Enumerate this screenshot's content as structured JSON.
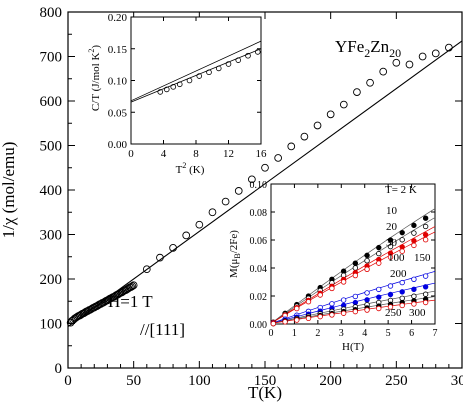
{
  "chart_data": [
    {
      "id": "main",
      "type": "scatter",
      "xlabel": "T(K)",
      "ylabel": "1/χ (mol/emu)",
      "xlim": [
        0,
        300
      ],
      "ylim": [
        0,
        800
      ],
      "xticks": [
        0,
        50,
        100,
        150,
        200,
        250,
        300
      ],
      "yticks": [
        0,
        100,
        200,
        300,
        400,
        500,
        600,
        700,
        800
      ],
      "annotations": {
        "compound": "YFe",
        "compound_sub1": "2",
        "compound_mid": "Zn",
        "compound_sub2": "20",
        "field": "H=1 T",
        "direction": "//[111]"
      },
      "series": [
        {
          "kind": "points",
          "marker": "open-circle",
          "x": [
            2,
            3,
            4,
            5,
            6,
            7,
            8,
            9,
            10,
            11,
            12,
            13,
            14,
            15,
            16,
            17,
            18,
            19,
            20,
            21,
            22,
            23,
            24,
            25,
            26,
            27,
            28,
            29,
            30,
            31,
            32,
            33,
            34,
            35,
            36,
            37,
            38,
            39,
            40,
            41,
            42,
            43,
            44,
            45,
            46,
            47,
            48,
            49,
            50,
            60,
            70,
            80,
            90,
            100,
            110,
            120,
            130,
            140,
            150,
            160,
            170,
            180,
            190,
            200,
            210,
            220,
            230,
            240,
            250,
            260,
            270,
            280,
            290
          ],
          "y": [
            102,
            106,
            108,
            111,
            113,
            115,
            117,
            118,
            120,
            122,
            123,
            125,
            127,
            128,
            130,
            131,
            133,
            135,
            136,
            138,
            139,
            141,
            143,
            144,
            146,
            147,
            149,
            151,
            152,
            154,
            156,
            157,
            159,
            160,
            162,
            164,
            165,
            167,
            169,
            170,
            172,
            174,
            175,
            177,
            179,
            181,
            182,
            184,
            186,
            222,
            248,
            270,
            298,
            322,
            350,
            374,
            398,
            424,
            450,
            472,
            498,
            520,
            545,
            570,
            592,
            620,
            641,
            666,
            686,
            682,
            700,
            707,
            720
          ]
        },
        {
          "kind": "line",
          "x": [
            0,
            300
          ],
          "y": [
            93,
            735
          ]
        }
      ]
    },
    {
      "id": "inset_heat_capacity",
      "type": "scatter",
      "xlabel": "T",
      "xlabel_sup": "2",
      "xlabel_unit": " (K)",
      "ylabel": "C/T (J/mol K",
      "ylabel_sup": "2",
      "ylabel_end": ")",
      "xlim": [
        0,
        16
      ],
      "ylim": [
        0,
        0.2
      ],
      "xticks": [
        0,
        4,
        8,
        12,
        16
      ],
      "yticks": [
        0,
        0.05,
        0.1,
        0.15,
        0.2
      ],
      "ytick_labels": [
        "0.00",
        "0.05",
        "0.10",
        "0.15",
        "0.20"
      ],
      "series": [
        {
          "kind": "points",
          "marker": "open-circle",
          "x": [
            3.6,
            4.4,
            5.2,
            6.0,
            7.2,
            8.4,
            9.6,
            10.8,
            12.0,
            13.2,
            14.4,
            15.6
          ],
          "y": [
            0.082,
            0.086,
            0.09,
            0.094,
            0.1,
            0.107,
            0.113,
            0.119,
            0.126,
            0.132,
            0.139,
            0.145
          ]
        },
        {
          "kind": "line",
          "x": [
            0,
            16
          ],
          "y": [
            0.066,
            0.15
          ]
        },
        {
          "kind": "line",
          "x": [
            0,
            16
          ],
          "y": [
            0.068,
            0.162
          ]
        }
      ]
    },
    {
      "id": "inset_magnetization",
      "type": "scatter",
      "xlabel": "H(T)",
      "ylabel": "M(μ",
      "ylabel_sub": "B",
      "ylabel_end": "/2Fe)",
      "xlim": [
        0,
        7
      ],
      "ylim": [
        0,
        0.1
      ],
      "xticks": [
        0,
        1,
        2,
        3,
        4,
        5,
        6,
        7
      ],
      "yticks": [
        0,
        0.02,
        0.04,
        0.06,
        0.08,
        0.1
      ],
      "ytick_labels": [
        "0.00",
        "0.02",
        "0.04",
        "0.06",
        "0.08",
        "0.10"
      ],
      "temperature_labels": {
        "t2": "T= 2 K",
        "t10": "10",
        "t20": "20",
        "t30": "30",
        "t100": "100",
        "t150": "150",
        "t200": "200",
        "t250": "250",
        "t300": "300"
      },
      "series": [
        {
          "T": 2,
          "color": "#000000",
          "marker": "filled-circle",
          "slope": 0.0128
        },
        {
          "T": 10,
          "color": "#000000",
          "marker": "open-circle",
          "slope": 0.0118
        },
        {
          "T": 20,
          "color": "#e00000",
          "marker": "filled-circle",
          "slope": 0.0108
        },
        {
          "T": 30,
          "color": "#e00000",
          "marker": "open-circle",
          "slope": 0.0102
        },
        {
          "T": 100,
          "color": "#0000e0",
          "marker": "open-circle",
          "slope": 0.0058
        },
        {
          "T": 150,
          "color": "#0000e0",
          "marker": "filled-circle",
          "slope": 0.0045
        },
        {
          "T": 200,
          "color": "#000000",
          "marker": "open-circle",
          "slope": 0.0036
        },
        {
          "T": 250,
          "color": "#000000",
          "marker": "filled-circle",
          "slope": 0.003
        },
        {
          "T": 300,
          "color": "#e00000",
          "marker": "open-circle",
          "slope": 0.0026
        }
      ]
    }
  ]
}
